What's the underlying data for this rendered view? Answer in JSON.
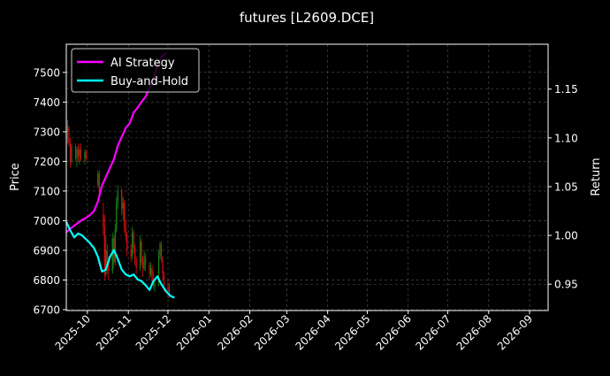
{
  "chart_data": {
    "type": "line",
    "title": "futures [L2609.DCE]",
    "ylabel": "Price",
    "y2label": "Return",
    "xlim": [
      "2025-09-15",
      "2026-09-15"
    ],
    "ylim": [
      6697,
      7595
    ],
    "y2lim": [
      0.923,
      1.196
    ],
    "grid": true,
    "legend_placement": "top-left",
    "x_ticks": [
      "2025-10",
      "2025-11",
      "2025-12",
      "2026-01",
      "2026-02",
      "2026-03",
      "2026-04",
      "2026-05",
      "2026-06",
      "2026-07",
      "2026-08",
      "2026-09"
    ],
    "y_ticks": [
      6700,
      6800,
      6900,
      7000,
      7100,
      7200,
      7300,
      7400,
      7500
    ],
    "y2_ticks": [
      0.95,
      1.0,
      1.05,
      1.1,
      1.15
    ],
    "y2_tick_labels": [
      "0.95",
      "1.00",
      "1.05",
      "1.10",
      "1.15"
    ],
    "colors": {
      "background": "#000000",
      "up": "#1a8a1a",
      "down": "#e01010",
      "ai": "#ff00ff",
      "bh": "#00ffff",
      "grid": "#555555"
    },
    "candles": [
      [
        "2025-09-15",
        7280,
        7320,
        7220,
        7300
      ],
      [
        "2025-09-16",
        7300,
        7340,
        7260,
        7320
      ],
      [
        "2025-09-17",
        7310,
        7320,
        7250,
        7260
      ],
      [
        "2025-09-18",
        7260,
        7280,
        7180,
        7200
      ],
      [
        "2025-09-19",
        7200,
        7260,
        7190,
        7250
      ],
      [
        "2025-09-22",
        7250,
        7260,
        7200,
        7210
      ],
      [
        "2025-09-23",
        7210,
        7250,
        7180,
        7240
      ],
      [
        "2025-09-24",
        7240,
        7260,
        7200,
        7220
      ],
      [
        "2025-09-25",
        7220,
        7250,
        7190,
        7240
      ],
      [
        "2025-09-26",
        7240,
        7260,
        7200,
        7210
      ],
      [
        "2025-09-29",
        7210,
        7240,
        7190,
        7230
      ],
      [
        "2025-09-30",
        7230,
        7240,
        7200,
        7210
      ],
      [
        "2025-10-09",
        7120,
        7170,
        7110,
        7160
      ],
      [
        "2025-10-10",
        7160,
        7170,
        7080,
        7100
      ],
      [
        "2025-10-13",
        7020,
        7060,
        6950,
        6980
      ],
      [
        "2025-10-14",
        6980,
        7020,
        6800,
        6820
      ],
      [
        "2025-10-15",
        6820,
        6950,
        6810,
        6900
      ],
      [
        "2025-10-16",
        6900,
        6920,
        6820,
        6850
      ],
      [
        "2025-10-17",
        6850,
        6880,
        6800,
        6830
      ],
      [
        "2025-10-20",
        6830,
        6960,
        6820,
        6940
      ],
      [
        "2025-10-21",
        6940,
        6950,
        6840,
        6860
      ],
      [
        "2025-10-22",
        6860,
        6990,
        6850,
        6970
      ],
      [
        "2025-10-23",
        6970,
        7080,
        6960,
        7060
      ],
      [
        "2025-10-24",
        7060,
        7120,
        7040,
        7100
      ],
      [
        "2025-10-27",
        7100,
        7110,
        7020,
        7040
      ],
      [
        "2025-10-28",
        7040,
        7080,
        7000,
        7060
      ],
      [
        "2025-10-29",
        7060,
        7070,
        6960,
        6980
      ],
      [
        "2025-10-30",
        6980,
        7000,
        6930,
        6950
      ],
      [
        "2025-10-31",
        6950,
        6960,
        6880,
        6900
      ],
      [
        "2025-11-03",
        6900,
        6920,
        6860,
        6880
      ],
      [
        "2025-11-04",
        6880,
        6980,
        6870,
        6960
      ],
      [
        "2025-11-05",
        6960,
        6970,
        6890,
        6910
      ],
      [
        "2025-11-06",
        6910,
        6920,
        6850,
        6870
      ],
      [
        "2025-11-07",
        6870,
        6880,
        6820,
        6840
      ],
      [
        "2025-11-10",
        6840,
        6950,
        6830,
        6930
      ],
      [
        "2025-11-11",
        6930,
        6940,
        6850,
        6860
      ],
      [
        "2025-11-12",
        6860,
        6880,
        6810,
        6840
      ],
      [
        "2025-11-13",
        6840,
        6900,
        6830,
        6880
      ],
      [
        "2025-11-14",
        6880,
        6890,
        6830,
        6850
      ],
      [
        "2025-11-17",
        6850,
        6860,
        6800,
        6820
      ],
      [
        "2025-11-18",
        6820,
        6860,
        6810,
        6840
      ],
      [
        "2025-11-19",
        6840,
        6850,
        6790,
        6800
      ],
      [
        "2025-11-20",
        6800,
        6830,
        6770,
        6780
      ],
      [
        "2025-11-21",
        6780,
        6800,
        6760,
        6790
      ],
      [
        "2025-11-24",
        6790,
        6900,
        6780,
        6880
      ],
      [
        "2025-11-25",
        6880,
        6930,
        6870,
        6920
      ],
      [
        "2025-11-26",
        6920,
        6930,
        6860,
        6870
      ],
      [
        "2025-11-27",
        6870,
        6880,
        6800,
        6820
      ],
      [
        "2025-11-28",
        6820,
        6830,
        6760,
        6780
      ],
      [
        "2025-12-01",
        6780,
        6800,
        6740,
        6760
      ],
      [
        "2025-12-02",
        6760,
        6790,
        6740,
        6770
      ]
    ],
    "series": [
      {
        "name": "AI Strategy",
        "axis": "right",
        "x": [
          "2025-09-15",
          "2025-09-18",
          "2025-09-21",
          "2025-09-24",
          "2025-09-27",
          "2025-09-30",
          "2025-10-03",
          "2025-10-06",
          "2025-10-09",
          "2025-10-12",
          "2025-10-15",
          "2025-10-18",
          "2025-10-21",
          "2025-10-24",
          "2025-10-27",
          "2025-10-30",
          "2025-11-02",
          "2025-11-05",
          "2025-11-08",
          "2025-11-11",
          "2025-11-14",
          "2025-11-17",
          "2025-11-20",
          "2025-11-23",
          "2025-11-26",
          "2025-11-30"
        ],
        "values": [
          1.003,
          1.007,
          1.01,
          1.013,
          1.016,
          1.018,
          1.021,
          1.025,
          1.035,
          1.051,
          1.06,
          1.069,
          1.078,
          1.092,
          1.101,
          1.11,
          1.115,
          1.126,
          1.131,
          1.137,
          1.142,
          1.151,
          1.16,
          1.174,
          1.183,
          1.187
        ]
      },
      {
        "name": "Buy-and-Hold",
        "axis": "right",
        "x": [
          "2025-09-15",
          "2025-09-18",
          "2025-09-21",
          "2025-09-24",
          "2025-09-27",
          "2025-09-30",
          "2025-10-03",
          "2025-10-06",
          "2025-10-09",
          "2025-10-12",
          "2025-10-15",
          "2025-10-18",
          "2025-10-21",
          "2025-10-24",
          "2025-10-27",
          "2025-10-30",
          "2025-11-02",
          "2025-11-05",
          "2025-11-08",
          "2025-11-11",
          "2025-11-14",
          "2025-11-17",
          "2025-11-20",
          "2025-11-23",
          "2025-11-26",
          "2025-11-30",
          "2025-12-03",
          "2025-12-06"
        ],
        "values": [
          1.014,
          1.005,
          0.998,
          1.002,
          1.0,
          0.996,
          0.992,
          0.987,
          0.978,
          0.963,
          0.965,
          0.978,
          0.985,
          0.976,
          0.965,
          0.96,
          0.958,
          0.96,
          0.955,
          0.953,
          0.949,
          0.944,
          0.953,
          0.958,
          0.95,
          0.942,
          0.938,
          0.936
        ]
      }
    ]
  }
}
